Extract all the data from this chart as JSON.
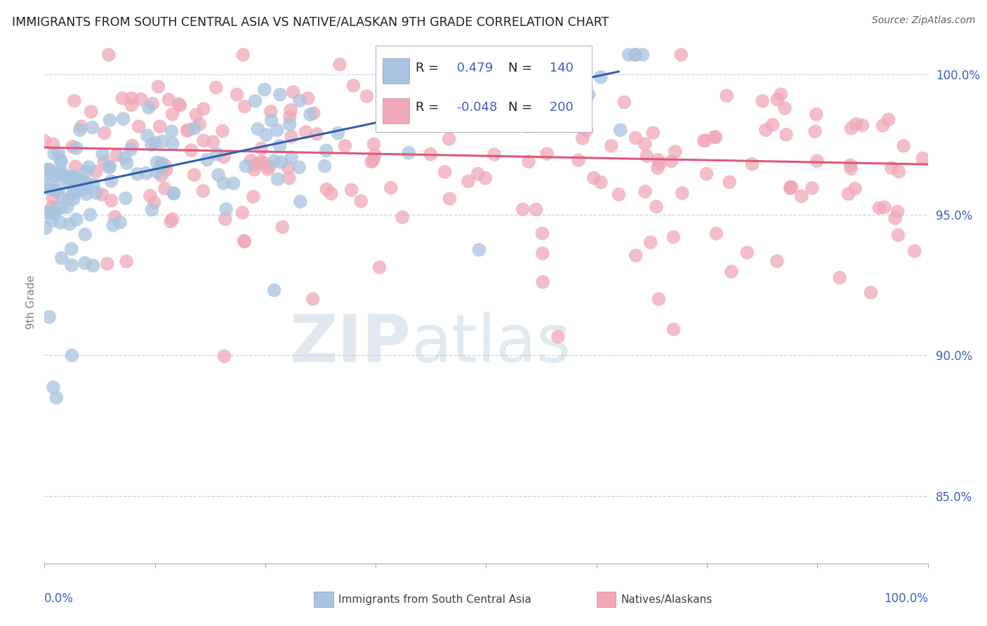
{
  "title": "IMMIGRANTS FROM SOUTH CENTRAL ASIA VS NATIVE/ALASKAN 9TH GRADE CORRELATION CHART",
  "source": "Source: ZipAtlas.com",
  "ylabel": "9th Grade",
  "xlim": [
    0.0,
    1.0
  ],
  "ylim": [
    0.826,
    1.012
  ],
  "yticks": [
    0.85,
    0.9,
    0.95,
    1.0
  ],
  "ytick_labels": [
    "85.0%",
    "90.0%",
    "95.0%",
    "100.0%"
  ],
  "r_blue": 0.479,
  "n_blue": 140,
  "r_pink": -0.048,
  "n_pink": 200,
  "blue_color": "#a8c4e0",
  "pink_color": "#f0a8b8",
  "blue_line_color": "#3060b0",
  "pink_line_color": "#e05878",
  "legend_label_blue": "Immigrants from South Central Asia",
  "legend_label_pink": "Natives/Alaskans",
  "watermark_zip": "ZIP",
  "watermark_atlas": "atlas",
  "background_color": "#ffffff",
  "grid_color": "#c8d4e8",
  "title_color": "#202020",
  "source_color": "#606060",
  "axis_label_color": "#4060c0",
  "ylabel_color": "#808080"
}
